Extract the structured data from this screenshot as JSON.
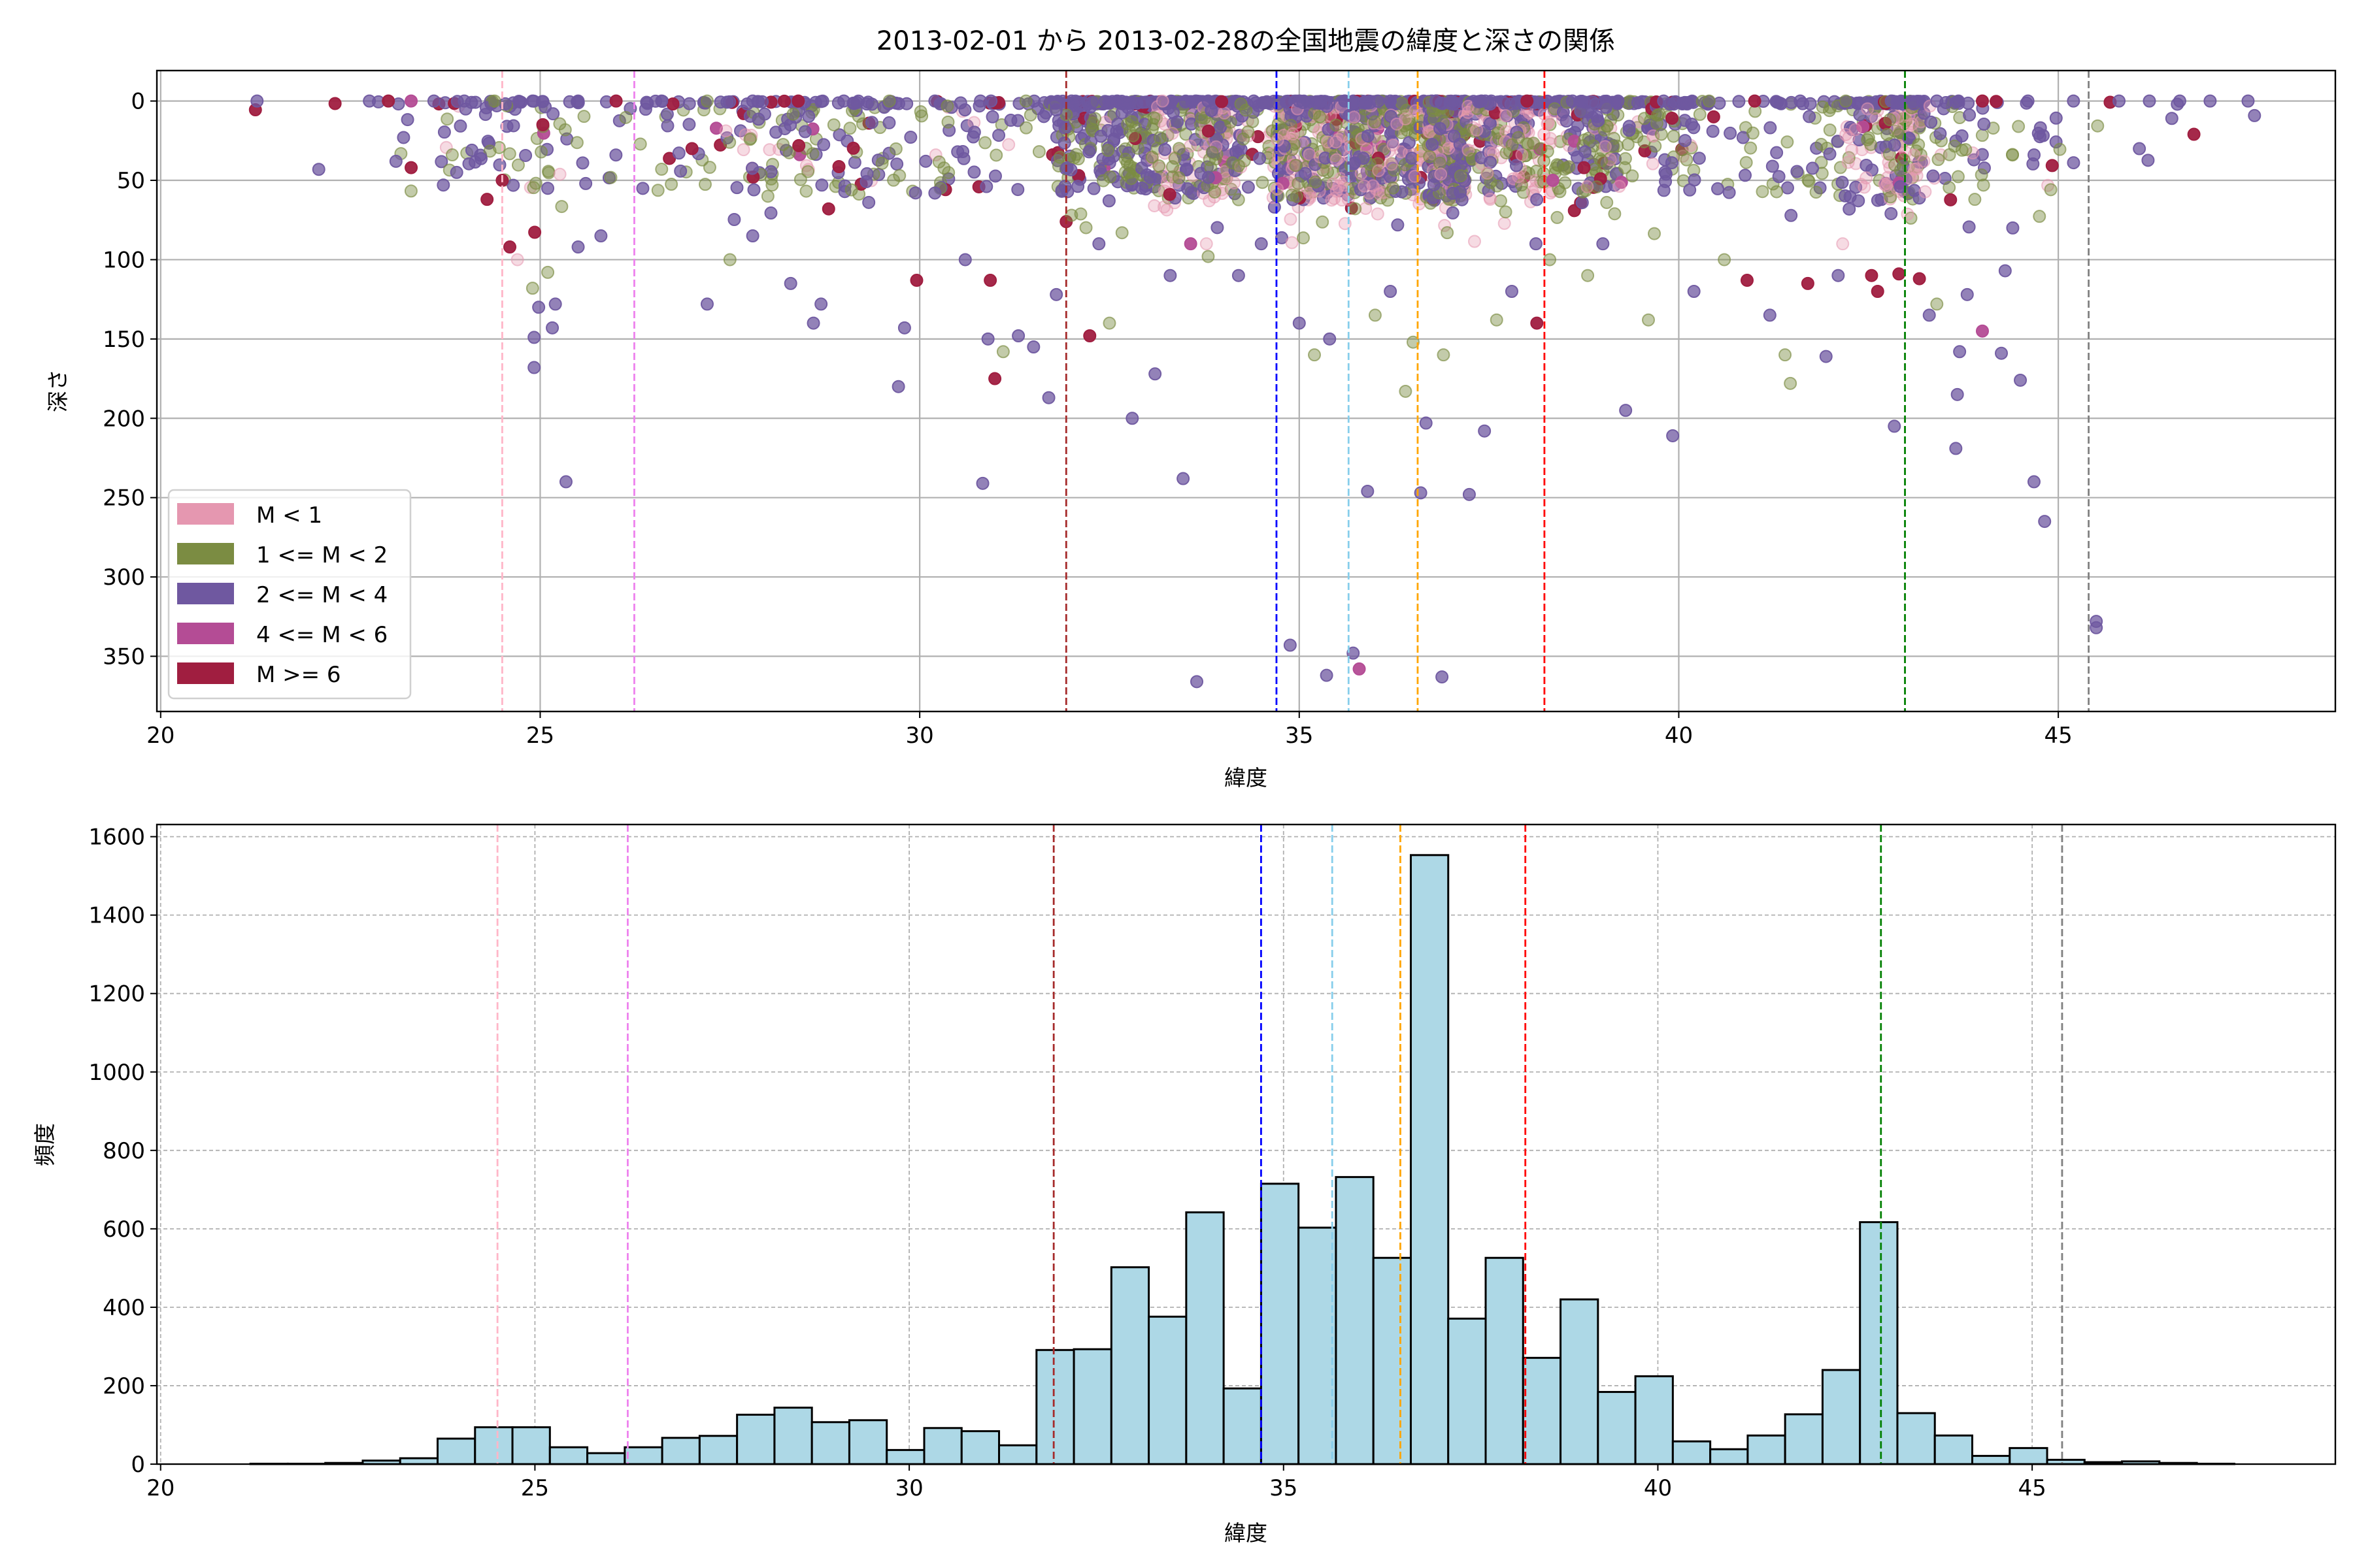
{
  "chart_data": [
    {
      "type": "scatter",
      "title": "2013-02-01 から 2013-02-28の全国地震の緯度と深さの関係",
      "xlabel": "緯度",
      "ylabel": "深さ",
      "xlim": [
        19.95,
        48.65
      ],
      "ylim": [
        384.8,
        -19.2
      ],
      "y_inverted": true,
      "xticks": [
        20,
        25,
        30,
        35,
        40,
        45
      ],
      "yticks": [
        0,
        50,
        100,
        150,
        200,
        250,
        300,
        350
      ],
      "grid": true,
      "legend_position": "lower-left",
      "legend": [
        {
          "label": "M < 1",
          "color": "#e597b0"
        },
        {
          "label": "1 <= M < 2",
          "color": "#7b8c42"
        },
        {
          "label": "2 <= M < 4",
          "color": "#6f58a0"
        },
        {
          "label": "4 <= M < 6",
          "color": "#b44c95"
        },
        {
          "label": "M >= 6",
          "color": "#a01e40"
        }
      ],
      "reference_lines": [
        {
          "x": 24.5,
          "color": "#ffb6c8"
        },
        {
          "x": 26.24,
          "color": "#ee82ee"
        },
        {
          "x": 31.93,
          "color": "#a52a2a"
        },
        {
          "x": 34.7,
          "color": "#0000ff"
        },
        {
          "x": 35.65,
          "color": "#87ceeb"
        },
        {
          "x": 36.56,
          "color": "#ffa500"
        },
        {
          "x": 38.23,
          "color": "#ff0000"
        },
        {
          "x": 42.98,
          "color": "#008000"
        },
        {
          "x": 45.4,
          "color": "#808080"
        }
      ],
      "points_format": [
        "latitude",
        "depth",
        "magnitude_class_index"
      ],
      "points": [
        [
          21.27,
          0,
          2
        ],
        [
          22.75,
          0,
          2
        ],
        [
          23.0,
          0,
          4
        ],
        [
          23.3,
          0,
          3
        ],
        [
          23.6,
          0,
          2
        ],
        [
          24.0,
          0,
          2
        ],
        [
          24.4,
          0,
          1
        ],
        [
          24.9,
          0,
          2
        ],
        [
          25.5,
          0,
          2
        ],
        [
          26.0,
          0,
          4
        ],
        [
          26.6,
          0,
          2
        ],
        [
          27.2,
          0,
          1
        ],
        [
          27.8,
          0,
          2
        ],
        [
          28.4,
          0,
          4
        ],
        [
          29.0,
          0,
          2
        ],
        [
          29.6,
          0,
          1
        ],
        [
          30.2,
          0,
          2
        ],
        [
          30.8,
          0,
          2
        ],
        [
          31.4,
          0,
          1
        ],
        [
          32.0,
          0,
          2
        ],
        [
          32.6,
          0,
          2
        ],
        [
          33.2,
          0,
          0
        ],
        [
          33.8,
          0,
          2
        ],
        [
          34.4,
          0,
          2
        ],
        [
          35.0,
          0,
          2
        ],
        [
          35.6,
          0,
          2
        ],
        [
          36.2,
          0,
          2
        ],
        [
          36.8,
          0,
          2
        ],
        [
          37.4,
          0,
          2
        ],
        [
          38.0,
          0,
          4
        ],
        [
          38.6,
          0,
          2
        ],
        [
          39.2,
          0,
          2
        ],
        [
          39.8,
          0,
          2
        ],
        [
          40.4,
          0,
          1
        ],
        [
          41.0,
          0,
          4
        ],
        [
          41.6,
          0,
          2
        ],
        [
          42.2,
          0,
          1
        ],
        [
          42.8,
          0,
          2
        ],
        [
          43.4,
          0,
          2
        ],
        [
          44.0,
          0,
          4
        ],
        [
          44.6,
          0,
          2
        ],
        [
          45.2,
          0,
          2
        ],
        [
          45.8,
          0,
          2
        ],
        [
          46.2,
          0,
          2
        ],
        [
          46.6,
          0,
          2
        ],
        [
          47.0,
          0,
          2
        ],
        [
          47.5,
          0,
          2
        ],
        [
          23.1,
          38,
          2
        ],
        [
          23.2,
          23,
          2
        ],
        [
          23.3,
          42,
          4
        ],
        [
          23.9,
          45,
          2
        ],
        [
          24.1,
          31,
          2
        ],
        [
          24.3,
          62,
          4
        ],
        [
          24.5,
          50,
          4
        ],
        [
          24.6,
          92,
          4
        ],
        [
          24.7,
          100,
          0
        ],
        [
          24.9,
          118,
          1
        ],
        [
          25.1,
          108,
          1
        ],
        [
          24.92,
          149,
          2
        ],
        [
          24.92,
          168,
          2
        ],
        [
          24.98,
          130,
          2
        ],
        [
          25.2,
          128,
          2
        ],
        [
          25.16,
          143,
          2
        ],
        [
          25.34,
          240,
          2
        ],
        [
          25.6,
          52,
          2
        ],
        [
          25.8,
          85,
          2
        ],
        [
          25.5,
          92,
          2
        ],
        [
          26.6,
          43,
          1
        ],
        [
          27.0,
          30,
          4
        ],
        [
          27.2,
          128,
          2
        ],
        [
          27.5,
          100,
          1
        ],
        [
          27.8,
          85,
          2
        ],
        [
          28.0,
          60,
          1
        ],
        [
          28.3,
          115,
          2
        ],
        [
          28.6,
          140,
          2
        ],
        [
          28.7,
          128,
          2
        ],
        [
          28.8,
          68,
          4
        ],
        [
          29.1,
          56,
          1
        ],
        [
          29.72,
          180,
          2
        ],
        [
          29.8,
          143,
          2
        ],
        [
          29.96,
          113,
          4
        ],
        [
          30.2,
          58,
          2
        ],
        [
          30.5,
          32,
          2
        ],
        [
          30.6,
          100,
          2
        ],
        [
          30.83,
          241,
          2
        ],
        [
          30.93,
          113,
          4
        ],
        [
          30.99,
          175,
          4
        ],
        [
          30.9,
          150,
          2
        ],
        [
          31.1,
          158,
          1
        ],
        [
          31.3,
          148,
          2
        ],
        [
          31.5,
          155,
          2
        ],
        [
          31.7,
          187,
          2
        ],
        [
          31.8,
          122,
          2
        ],
        [
          31.93,
          76,
          4
        ],
        [
          32.24,
          148,
          4
        ],
        [
          32.0,
          72,
          1
        ],
        [
          32.5,
          140,
          1
        ],
        [
          32.8,
          200,
          2
        ],
        [
          33.1,
          172,
          2
        ],
        [
          33.47,
          238,
          2
        ],
        [
          33.65,
          366,
          2
        ],
        [
          33.3,
          110,
          2
        ],
        [
          33.8,
          98,
          1
        ],
        [
          34.2,
          110,
          2
        ],
        [
          34.5,
          90,
          2
        ],
        [
          34.88,
          343,
          2
        ],
        [
          35.0,
          140,
          2
        ],
        [
          35.2,
          160,
          1
        ],
        [
          35.36,
          362,
          2
        ],
        [
          35.4,
          150,
          2
        ],
        [
          35.71,
          348,
          2
        ],
        [
          35.79,
          358,
          3
        ],
        [
          35.9,
          246,
          2
        ],
        [
          36.0,
          135,
          1
        ],
        [
          36.2,
          120,
          2
        ],
        [
          36.4,
          183,
          1
        ],
        [
          36.5,
          152,
          1
        ],
        [
          36.6,
          247,
          2
        ],
        [
          36.67,
          203,
          2
        ],
        [
          36.88,
          363,
          2
        ],
        [
          36.9,
          160,
          1
        ],
        [
          37.24,
          248,
          2
        ],
        [
          37.44,
          208,
          2
        ],
        [
          37.6,
          138,
          1
        ],
        [
          37.8,
          120,
          2
        ],
        [
          38.13,
          140,
          4
        ],
        [
          38.3,
          100,
          1
        ],
        [
          38.8,
          110,
          1
        ],
        [
          39.0,
          90,
          2
        ],
        [
          39.3,
          195,
          2
        ],
        [
          39.6,
          138,
          1
        ],
        [
          39.92,
          211,
          2
        ],
        [
          40.2,
          120,
          2
        ],
        [
          40.6,
          100,
          1
        ],
        [
          40.9,
          113,
          4
        ],
        [
          41.2,
          135,
          2
        ],
        [
          41.4,
          160,
          1
        ],
        [
          41.47,
          178,
          1
        ],
        [
          41.7,
          115,
          4
        ],
        [
          41.94,
          161,
          2
        ],
        [
          42.1,
          110,
          2
        ],
        [
          42.54,
          110,
          4
        ],
        [
          42.62,
          120,
          4
        ],
        [
          42.84,
          205,
          2
        ],
        [
          42.9,
          109,
          4
        ],
        [
          43.17,
          112,
          4
        ],
        [
          43.3,
          135,
          2
        ],
        [
          43.4,
          128,
          1
        ],
        [
          43.65,
          219,
          2
        ],
        [
          43.67,
          185,
          2
        ],
        [
          43.7,
          158,
          2
        ],
        [
          43.8,
          122,
          2
        ],
        [
          44.0,
          145,
          3
        ],
        [
          44.25,
          159,
          2
        ],
        [
          44.3,
          107,
          2
        ],
        [
          44.5,
          176,
          2
        ],
        [
          44.68,
          240,
          2
        ],
        [
          44.82,
          265,
          2
        ],
        [
          45.5,
          328,
          2
        ],
        [
          45.5,
          332,
          2
        ],
        [
          44.4,
          80,
          2
        ],
        [
          43.9,
          62,
          1
        ]
      ]
    },
    {
      "type": "bar",
      "subtype": "histogram",
      "xlabel": "緯度",
      "ylabel": "頻度",
      "xlim": [
        19.95,
        49.05
      ],
      "ylim": [
        0,
        1631
      ],
      "xticks": [
        20,
        25,
        30,
        35,
        40,
        45
      ],
      "yticks": [
        0,
        200,
        400,
        600,
        800,
        1000,
        1200,
        1400,
        1600
      ],
      "grid": true,
      "bar_color": "#add8e6",
      "edge_color": "#000000",
      "bin_start": 21.2,
      "bin_width": 0.5,
      "values": [
        1,
        1,
        3,
        9,
        15,
        65,
        94,
        94,
        43,
        28,
        43,
        67,
        72,
        126,
        144,
        107,
        112,
        36,
        92,
        84,
        48,
        291,
        293,
        502,
        376,
        642,
        193,
        715,
        603,
        732,
        526,
        1553,
        371,
        526,
        271,
        420,
        184,
        224,
        58,
        38,
        73,
        127,
        240,
        617,
        130,
        73,
        21,
        41,
        11,
        5,
        7,
        3,
        1
      ],
      "reference_lines": [
        {
          "x": 24.5,
          "color": "#ffb6c8"
        },
        {
          "x": 26.24,
          "color": "#ee82ee"
        },
        {
          "x": 31.93,
          "color": "#a52a2a"
        },
        {
          "x": 34.7,
          "color": "#0000ff"
        },
        {
          "x": 35.65,
          "color": "#87ceeb"
        },
        {
          "x": 36.56,
          "color": "#ffa500"
        },
        {
          "x": 38.23,
          "color": "#ff0000"
        },
        {
          "x": 42.98,
          "color": "#008000"
        },
        {
          "x": 45.4,
          "color": "#808080"
        }
      ]
    }
  ]
}
